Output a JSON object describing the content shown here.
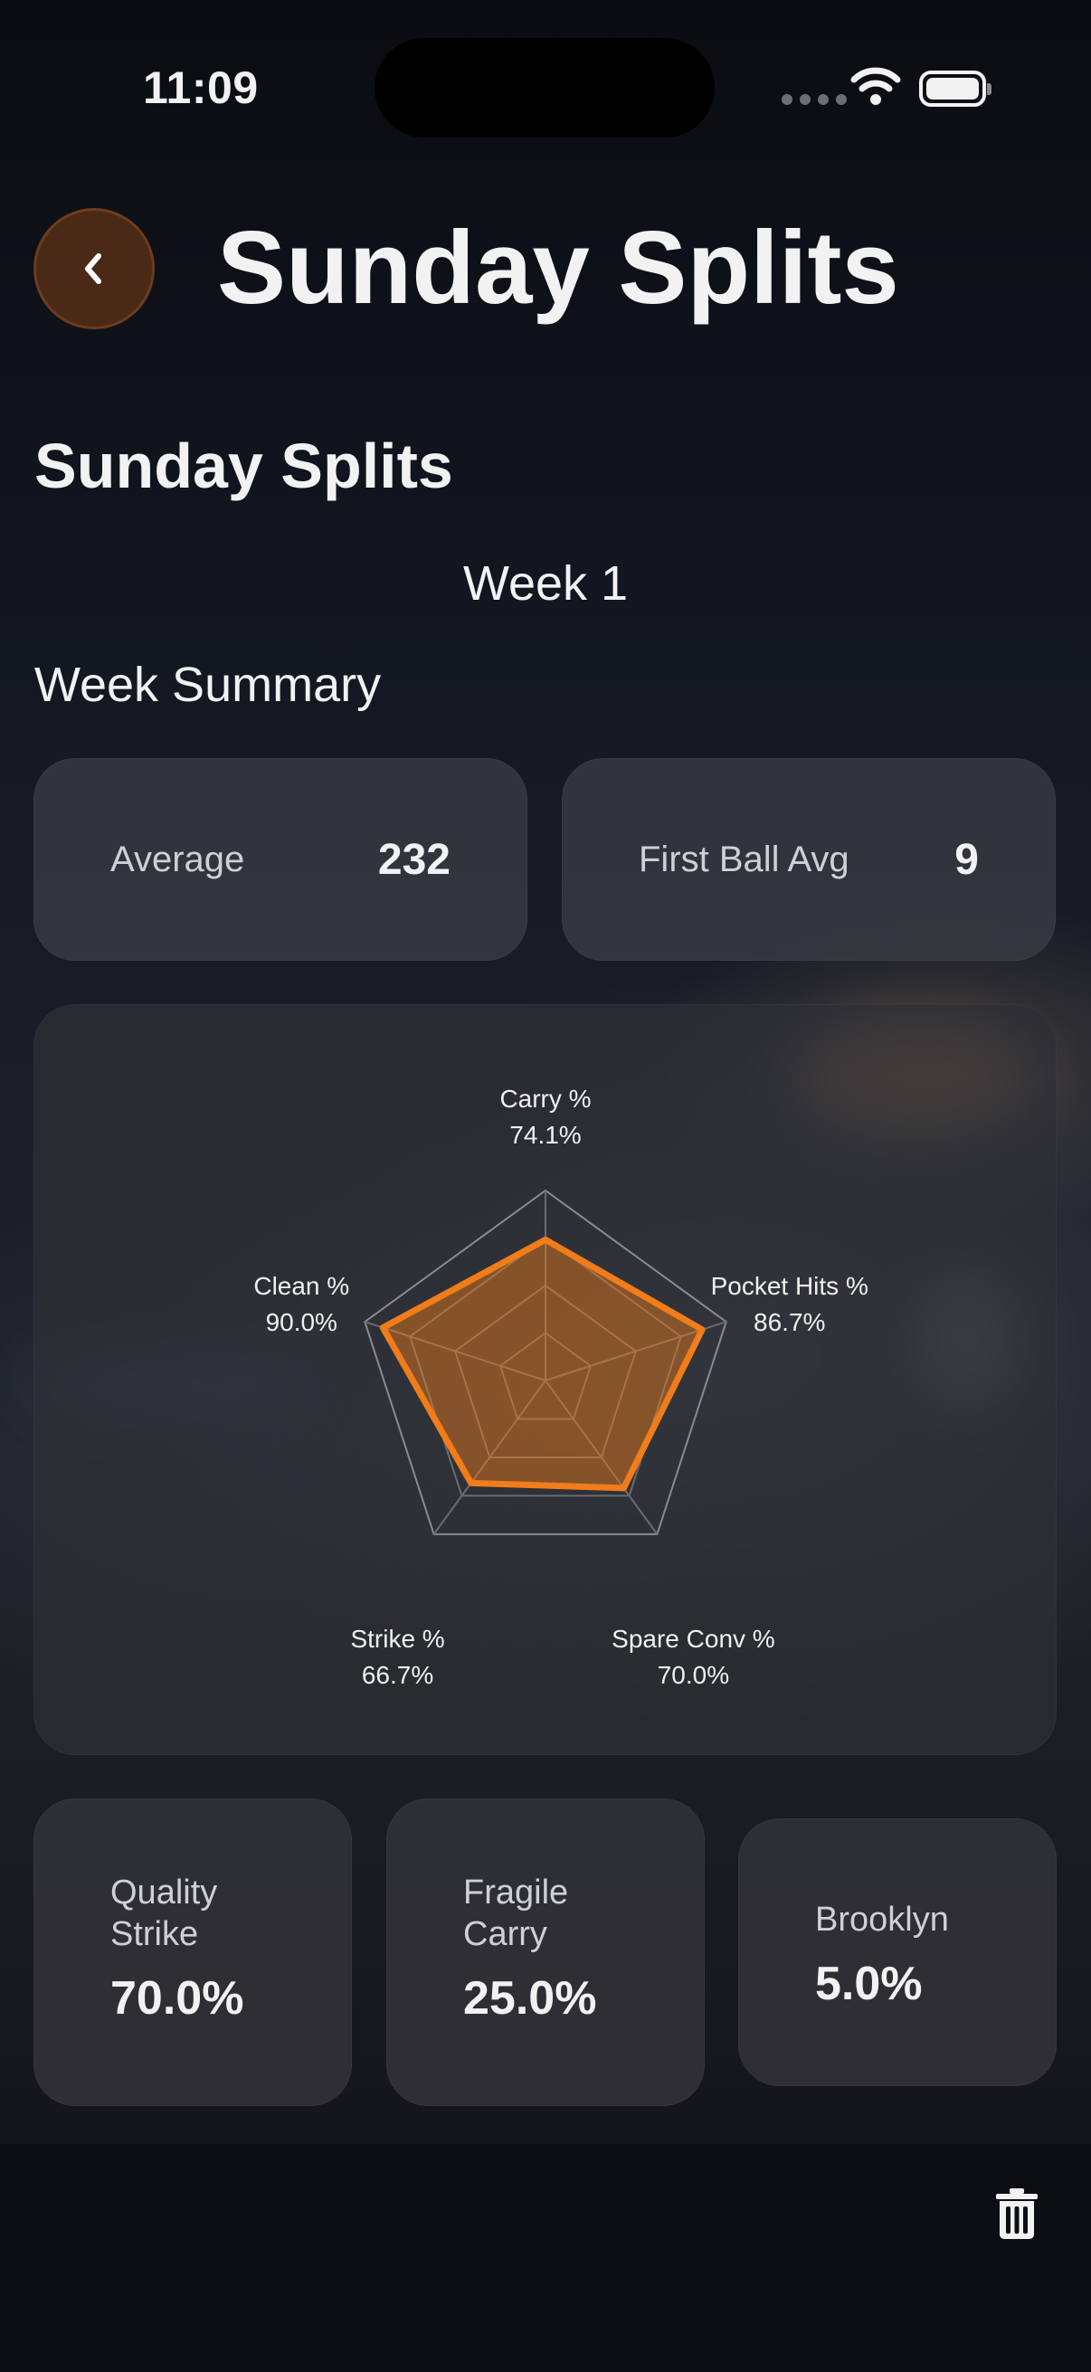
{
  "status_bar": {
    "time": "11:09"
  },
  "nav": {
    "title": "Sunday Splits",
    "back_icon": "chevron-left-icon"
  },
  "heading": "Sunday Splits",
  "week_label": "Week 1",
  "section_title": "Week Summary",
  "stats": [
    {
      "label": "Average",
      "value": "232"
    },
    {
      "label": "First Ball Avg",
      "value": "9"
    }
  ],
  "chart_data": {
    "type": "radar",
    "axes": [
      {
        "label": "Carry %",
        "value_label": "74.1%",
        "value": 74.1
      },
      {
        "label": "Pocket Hits %",
        "value_label": "86.7%",
        "value": 86.7
      },
      {
        "label": "Spare Conv %",
        "value_label": "70.0%",
        "value": 70.0
      },
      {
        "label": "Strike %",
        "value_label": "66.7%",
        "value": 66.7
      },
      {
        "label": "Clean %",
        "value_label": "90.0%",
        "value": 90.0
      }
    ],
    "range": [
      0,
      100
    ],
    "grid_levels": 4,
    "series_color": "#f07c1a"
  },
  "metrics": [
    {
      "label": "Quality Strike",
      "value": "70.0%"
    },
    {
      "label": "Fragile Carry",
      "value": "25.0%"
    },
    {
      "label": "Brooklyn",
      "value": "5.0%"
    }
  ],
  "colors": {
    "accent": "#f07c1a",
    "back_button_bg": "#4a2a16"
  },
  "footer": {
    "delete_icon": "trash-icon"
  }
}
